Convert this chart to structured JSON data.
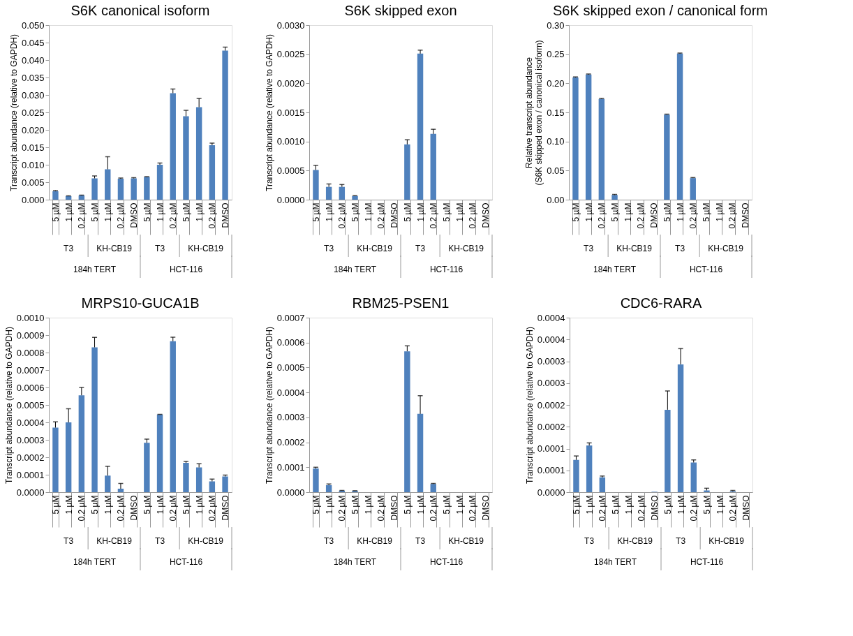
{
  "chart_data": [
    {
      "type": "bar",
      "title": "S6K canonical isoform",
      "ylabel": "Transcript abundance (relative to GAPDH)",
      "categories": [
        "5 µM",
        "1 µM",
        "0.2 µM",
        "5 µM",
        "1 µM",
        "0.2 µM",
        "DMSO",
        "5 µM",
        "1 µM",
        "0.2 µM",
        "5 µM",
        "1 µM",
        "0.2 µM",
        "DMSO"
      ],
      "color": "#4f81bd",
      "values": [
        0.0024,
        0.001,
        0.0012,
        0.0061,
        0.0087,
        0.006,
        0.0061,
        0.0065,
        0.01,
        0.0305,
        0.0239,
        0.0265,
        0.0156,
        0.0427
      ],
      "errors": [
        [
          0.0024,
          0.0026
        ],
        [
          0.001,
          0.0011
        ],
        [
          0.0012,
          0.0013
        ],
        [
          0.0061,
          0.0068
        ],
        [
          0.0087,
          0.0123
        ],
        [
          0.006,
          0.0062
        ],
        [
          0.0061,
          0.0063
        ],
        [
          0.0065,
          0.0066
        ],
        [
          0.01,
          0.0105
        ],
        [
          0.0305,
          0.0317
        ],
        [
          0.0239,
          0.0256
        ],
        [
          0.0265,
          0.029
        ],
        [
          0.0156,
          0.0162
        ],
        [
          0.0427,
          0.0437
        ]
      ],
      "ylim": [
        0,
        0.05
      ],
      "yticks": [
        {
          "value": 0,
          "label": "0.000"
        },
        {
          "value": 0.005,
          "label": "0.005"
        },
        {
          "value": 0.01,
          "label": "0.010"
        },
        {
          "value": 0.015,
          "label": "0.015"
        },
        {
          "value": 0.02,
          "label": "0.020"
        },
        {
          "value": 0.025,
          "label": "0.025"
        },
        {
          "value": 0.03,
          "label": "0.030"
        },
        {
          "value": 0.035,
          "label": "0.035"
        },
        {
          "value": 0.04,
          "label": "0.040"
        },
        {
          "value": 0.045,
          "label": "0.045"
        },
        {
          "value": 0.05,
          "label": "0.050"
        }
      ],
      "annotations": [
        "T3",
        "KH-CB19",
        "T3",
        "KH-CB19",
        "184h TERT",
        "HCT-116"
      ],
      "grid": false
    },
    {
      "type": "bar",
      "title": "S6K skipped exon",
      "ylabel": "Transcript abundance (relative to GAPDH)",
      "categories": [
        "5 µM",
        "1 µM",
        "0.2 µM",
        "5 µM",
        "1 µM",
        "0.2 µM",
        "DMSO",
        "5 µM",
        "1 µM",
        "0.2 µM",
        "5 µM",
        "1 µM",
        "0.2 µM",
        "DMSO"
      ],
      "color": "#4f81bd",
      "values": [
        0.00051,
        0.00022,
        0.00022,
        6e-05,
        0,
        0,
        0,
        0.00095,
        0.00251,
        0.00113,
        0,
        0,
        0,
        0
      ],
      "errors": [
        [
          0.00051,
          0.00059
        ],
        [
          0.00022,
          0.00027
        ],
        [
          0.00022,
          0.00026
        ],
        [
          6e-05,
          7e-05
        ],
        null,
        null,
        null,
        [
          0.00095,
          0.00103
        ],
        [
          0.00251,
          0.00257
        ],
        [
          0.00113,
          0.00121
        ],
        null,
        null,
        null,
        null
      ],
      "ylim": [
        0,
        0.003
      ],
      "yticks": [
        {
          "value": 0,
          "label": "0.0000"
        },
        {
          "value": 0.0005,
          "label": "0.0005"
        },
        {
          "value": 0.001,
          "label": "0.0010"
        },
        {
          "value": 0.0015,
          "label": "0.0015"
        },
        {
          "value": 0.002,
          "label": "0.0020"
        },
        {
          "value": 0.0025,
          "label": "0.0025"
        },
        {
          "value": 0.003,
          "label": "0.0030"
        }
      ],
      "annotations": [
        "T3",
        "KH-CB19",
        "T3",
        "KH-CB19",
        "184h TERT",
        "HCT-116"
      ],
      "grid": false
    },
    {
      "type": "bar",
      "title": "S6K skipped exon / canonical form",
      "ylabel": "Relative transcript abundance\n(S6K skipped exon / canonical isoform)",
      "categories": [
        "5 µM",
        "1 µM",
        "0.2 µM",
        "5 µM",
        "1 µM",
        "0.2 µM",
        "DMSO",
        "5 µM",
        "1 µM",
        "0.2 µM",
        "5 µM",
        "1 µM",
        "0.2 µM",
        "DMSO"
      ],
      "color": "#4f81bd",
      "values": [
        0.21,
        0.215,
        0.173,
        0.008,
        0,
        0,
        0,
        0.146,
        0.251,
        0.037,
        0,
        0,
        0,
        0
      ],
      "errors": [
        [
          0.21,
          0.211
        ],
        [
          0.215,
          0.216
        ],
        [
          0.173,
          0.174
        ],
        [
          0.008,
          0.009
        ],
        null,
        null,
        null,
        [
          0.146,
          0.147
        ],
        [
          0.251,
          0.252
        ],
        [
          0.037,
          0.038
        ],
        null,
        null,
        null,
        null
      ],
      "ylim": [
        0,
        0.3
      ],
      "yticks": [
        {
          "value": 0,
          "label": "0.00"
        },
        {
          "value": 0.05,
          "label": "0.05"
        },
        {
          "value": 0.1,
          "label": "0.10"
        },
        {
          "value": 0.15,
          "label": "0.15"
        },
        {
          "value": 0.2,
          "label": "0.20"
        },
        {
          "value": 0.25,
          "label": "0.25"
        },
        {
          "value": 0.3,
          "label": "0.30"
        }
      ],
      "annotations": [
        "T3",
        "KH-CB19",
        "T3",
        "KH-CB19",
        "184h TERT",
        "HCT-116"
      ],
      "grid": false
    },
    {
      "type": "bar",
      "title": "MRPS10-GUCA1B",
      "ylabel": "Transcript abundance (relative to GAPDH)",
      "categories": [
        "5 µM",
        "1 µM",
        "0.2 µM",
        "5 µM",
        "1 µM",
        "0.2 µM",
        "DMSO",
        "5 µM",
        "1 µM",
        "0.2 µM",
        "5 µM",
        "1 µM",
        "0.2 µM",
        "DMSO"
      ],
      "color": "#4f81bd",
      "values": [
        0.00037,
        0.0004,
        0.000555,
        0.00083,
        9.5e-05,
        2e-05,
        0,
        0.000283,
        0.000445,
        0.000865,
        0.000168,
        0.000142,
        6.2e-05,
        9e-05
      ],
      "errors": [
        [
          0.00037,
          0.000403
        ],
        [
          0.0004,
          0.000478
        ],
        [
          0.000555,
          0.0006
        ],
        [
          0.00083,
          0.000887
        ],
        [
          9.5e-05,
          0.000148
        ],
        [
          2e-05,
          5e-05
        ],
        null,
        [
          0.000283,
          0.000304
        ],
        [
          0.000445,
          0.000446
        ],
        [
          0.000865,
          0.000888
        ],
        [
          0.000168,
          0.000177
        ],
        [
          0.000142,
          0.000163
        ],
        [
          6.2e-05,
          7.5e-05
        ],
        [
          9e-05,
          9.8e-05
        ]
      ],
      "ylim": [
        0,
        0.001
      ],
      "yticks": [
        {
          "value": 0,
          "label": "0.0000"
        },
        {
          "value": 0.0001,
          "label": "0.0001"
        },
        {
          "value": 0.0002,
          "label": "0.0002"
        },
        {
          "value": 0.0003,
          "label": "0.0003"
        },
        {
          "value": 0.0004,
          "label": "0.0004"
        },
        {
          "value": 0.0005,
          "label": "0.0005"
        },
        {
          "value": 0.0006,
          "label": "0.0006"
        },
        {
          "value": 0.0007,
          "label": "0.0007"
        },
        {
          "value": 0.0008,
          "label": "0.0008"
        },
        {
          "value": 0.0009,
          "label": "0.0009"
        },
        {
          "value": 0.001,
          "label": "0.0010"
        }
      ],
      "annotations": [
        "T3",
        "KH-CB19",
        "T3",
        "KH-CB19",
        "184h TERT",
        "HCT-116"
      ],
      "grid": false
    },
    {
      "type": "bar",
      "title": "RBM25-PSEN1",
      "ylabel": "Transcript abundance (relative to GAPDH)",
      "categories": [
        "5 µM",
        "1 µM",
        "0.2 µM",
        "5 µM",
        "1 µM",
        "0.2 µM",
        "DMSO",
        "5 µM",
        "1 µM",
        "0.2 µM",
        "5 µM",
        "1 µM",
        "0.2 µM",
        "DMSO"
      ],
      "color": "#4f81bd",
      "values": [
        9.5e-05,
        2.8e-05,
        6e-06,
        5e-06,
        0,
        0,
        0,
        0.000565,
        0.000314,
        3.3e-05,
        0,
        0,
        0,
        0
      ],
      "errors": [
        [
          9.5e-05,
          0.0001
        ],
        [
          2.8e-05,
          3.3e-05
        ],
        [
          6e-06,
          7e-06
        ],
        [
          5e-06,
          6e-06
        ],
        null,
        null,
        null,
        [
          0.000565,
          0.000587
        ],
        [
          0.000314,
          0.000387
        ],
        [
          3.3e-05,
          3.5e-05
        ],
        null,
        null,
        null,
        null
      ],
      "ylim": [
        0,
        0.0007
      ],
      "yticks": [
        {
          "value": 0,
          "label": "0.0000"
        },
        {
          "value": 0.0001,
          "label": "0.0001"
        },
        {
          "value": 0.0002,
          "label": "0.0002"
        },
        {
          "value": 0.0003,
          "label": "0.0003"
        },
        {
          "value": 0.0004,
          "label": "0.0004"
        },
        {
          "value": 0.0005,
          "label": "0.0005"
        },
        {
          "value": 0.0006,
          "label": "0.0006"
        },
        {
          "value": 0.0007,
          "label": "0.0007"
        }
      ],
      "annotations": [
        "T3",
        "KH-CB19",
        "T3",
        "KH-CB19",
        "184h TERT",
        "HCT-116"
      ],
      "grid": false
    },
    {
      "type": "bar",
      "title": "CDC6-RARA",
      "ylabel": "Transcript abundance (relative to GAPDH)",
      "categories": [
        "5 µM",
        "1 µM",
        "0.2 µM",
        "5 µM",
        "1 µM",
        "0.2 µM",
        "DMSO",
        "5 µM",
        "1 µM",
        "0.2 µM",
        "5 µM",
        "1 µM",
        "0.2 µM",
        "DMSO"
      ],
      "color": "#4f81bd",
      "values": [
        7.4e-05,
        0.000107,
        3.4e-05,
        0,
        0,
        0,
        1e-06,
        0.000189,
        0.000293,
        6.8e-05,
        4e-06,
        0,
        2e-06,
        0
      ],
      "errors": [
        [
          7.4e-05,
          8.3e-05
        ],
        [
          0.000107,
          0.000113
        ],
        [
          3.4e-05,
          3.7e-05
        ],
        null,
        null,
        null,
        null,
        [
          0.000189,
          0.000232
        ],
        [
          0.000293,
          0.000329
        ],
        [
          6.8e-05,
          7.4e-05
        ],
        [
          4e-06,
          9e-06
        ],
        null,
        [
          2e-06,
          4e-06
        ],
        null
      ],
      "ylim": [
        0,
        0.0004
      ],
      "yticks": [
        {
          "value": 0,
          "label": "0.0000"
        },
        {
          "value": 5e-05,
          "label": "0.0001"
        },
        {
          "value": 0.0001,
          "label": "0.0001"
        },
        {
          "value": 0.00015,
          "label": "0.0002"
        },
        {
          "value": 0.0002,
          "label": "0.0002"
        },
        {
          "value": 0.00025,
          "label": "0.0003"
        },
        {
          "value": 0.0003,
          "label": "0.0003"
        },
        {
          "value": 0.00035,
          "label": "0.0004"
        },
        {
          "value": 0.0004,
          "label": "0.0004"
        }
      ],
      "annotations": [
        "T3",
        "KH-CB19",
        "T3",
        "KH-CB19",
        "184h TERT",
        "HCT-116"
      ],
      "grid": false
    }
  ]
}
